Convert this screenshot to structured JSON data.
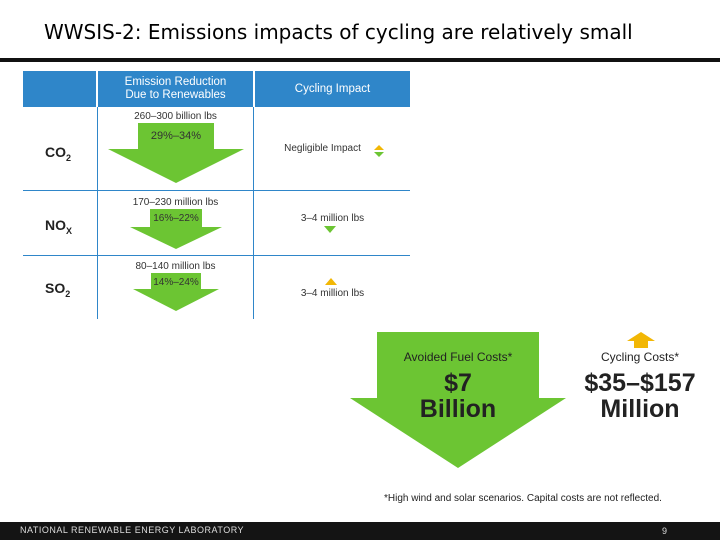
{
  "title": "WWSIS-2: Emissions impacts of cycling are relatively small",
  "table": {
    "headers": [
      "",
      "Emission Reduction Due to Renewables",
      "Cycling Impact"
    ],
    "rows": [
      {
        "gas": "CO",
        "sub": "2",
        "range": "260–300 billion lbs",
        "percent": "29%–34%",
        "impact": "Negligible Impact",
        "impact_icon": "up-down-arrows-icon"
      },
      {
        "gas": "NO",
        "sub": "X",
        "range": "170–230 million lbs",
        "percent": "16%–22%",
        "impact": "3–4 million lbs",
        "impact_icon": "down-arrow-icon"
      },
      {
        "gas": "SO",
        "sub": "2",
        "range": "80–140 million lbs",
        "percent": "14%–24%",
        "impact": "3–4 million lbs",
        "impact_icon": "up-arrow-icon"
      }
    ]
  },
  "costs": {
    "avoided_label": "Avoided Fuel Costs*",
    "avoided_value_line1": "$7",
    "avoided_value_line2": "Billion",
    "cycling_label": "Cycling Costs*",
    "cycling_value_line1": "$35–$157",
    "cycling_value_line2": "Million"
  },
  "note": "*High wind and solar scenarios. Capital costs are not reflected.",
  "footer": {
    "org": "NATIONAL RENEWABLE ENERGY LABORATORY",
    "page": "9"
  },
  "colors": {
    "accent_blue": "#2f86c9",
    "arrow_green": "#6cc533",
    "up_orange": "#f2b705"
  }
}
